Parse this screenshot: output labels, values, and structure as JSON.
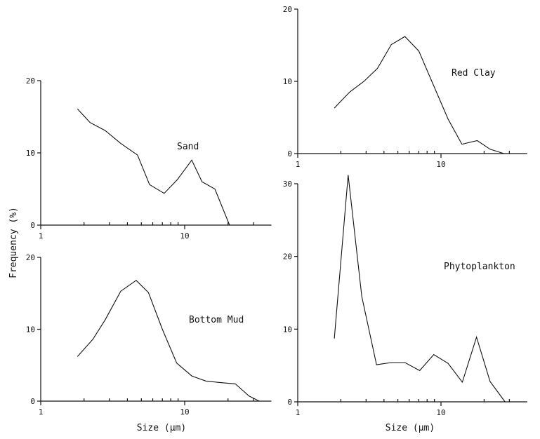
{
  "axis_titles": {
    "ylabel": "Frequency (%)",
    "xlabel_left": "Size (μm)",
    "xlabel_right": "Size (μm)"
  },
  "chart_data": [
    {
      "type": "line",
      "label": "Sand",
      "x_scale": "log",
      "xlim": [
        1,
        40
      ],
      "ylim": [
        0,
        20
      ],
      "x_tick_labels": [
        "1",
        "10"
      ],
      "y_tick_labels": [
        "0",
        "10",
        "20"
      ],
      "x": [
        1.8,
        2.2,
        2.8,
        3.6,
        4.7,
        5.7,
        7.2,
        8.9,
        11.2,
        13.2,
        16.2,
        20.5
      ],
      "y": [
        16.1,
        14.2,
        13.1,
        11.3,
        9.7,
        5.6,
        4.4,
        6.3,
        9.0,
        6.0,
        5.0,
        0.0
      ]
    },
    {
      "type": "line",
      "label": "Red Clay",
      "x_scale": "log",
      "xlim": [
        1,
        40
      ],
      "ylim": [
        0,
        20
      ],
      "x_tick_labels": [
        "1",
        "10"
      ],
      "y_tick_labels": [
        "0",
        "10",
        "20"
      ],
      "x": [
        1.8,
        2.3,
        2.9,
        3.6,
        4.5,
        5.6,
        7.0,
        8.8,
        11.2,
        14.0,
        17.9,
        22.0,
        27.5
      ],
      "y": [
        6.3,
        8.5,
        10.0,
        11.8,
        15.1,
        16.2,
        14.2,
        9.6,
        4.8,
        1.3,
        1.8,
        0.6,
        0.0
      ]
    },
    {
      "type": "line",
      "label": "Bottom Mud",
      "x_scale": "log",
      "xlim": [
        1,
        40
      ],
      "ylim": [
        0,
        20
      ],
      "x_tick_labels": [
        "1",
        "10"
      ],
      "y_tick_labels": [
        "0",
        "10",
        "20"
      ],
      "x": [
        1.8,
        2.3,
        2.8,
        3.6,
        4.6,
        5.6,
        7.0,
        8.8,
        11.2,
        14.0,
        17.5,
        22.5,
        28.0,
        33.0
      ],
      "y": [
        6.2,
        8.6,
        11.3,
        15.3,
        16.8,
        15.1,
        10.0,
        5.3,
        3.5,
        2.8,
        2.6,
        2.4,
        0.7,
        0.0
      ]
    },
    {
      "type": "line",
      "label": "Phytoplankton",
      "x_scale": "log",
      "xlim": [
        1,
        40
      ],
      "ylim": [
        0,
        30
      ],
      "x_tick_labels": [
        "1",
        "10"
      ],
      "y_tick_labels": [
        "0",
        "10",
        "20",
        "30"
      ],
      "x": [
        1.8,
        2.25,
        2.8,
        3.55,
        4.5,
        5.6,
        7.1,
        8.9,
        11.2,
        14.1,
        17.7,
        22.0,
        28.0
      ],
      "y": [
        8.7,
        31.2,
        14.5,
        5.1,
        5.4,
        5.4,
        4.3,
        6.5,
        5.3,
        2.7,
        8.9,
        2.8,
        0.0
      ]
    }
  ]
}
